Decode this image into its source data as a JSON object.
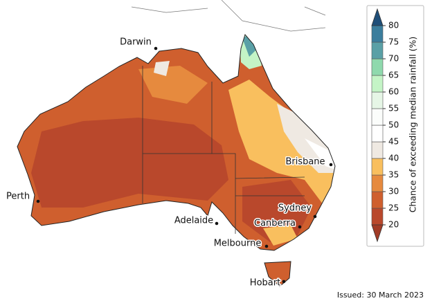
{
  "legend": {
    "title": "Chance of exceeding median rainfall (%)",
    "ticks": [
      20,
      25,
      30,
      35,
      40,
      45,
      50,
      55,
      60,
      65,
      70,
      75,
      80
    ],
    "colors": [
      "#b9482c",
      "#cf5f2e",
      "#e68a3e",
      "#f9bf5e",
      "#efe9e2",
      "#ffffff",
      "#fbfdfb",
      "#e6f6e6",
      "#c4f4c6",
      "#8fd9ad",
      "#5aa0a6",
      "#3b7e9d"
    ],
    "under_color": "#a13b26",
    "over_color": "#1f4f79"
  },
  "cities": [
    {
      "name": "Darwin"
    },
    {
      "name": "Perth"
    },
    {
      "name": "Adelaide"
    },
    {
      "name": "Melbourne"
    },
    {
      "name": "Hobart"
    },
    {
      "name": "Brisbane"
    },
    {
      "name": "Sydney"
    },
    {
      "name": "Canberra"
    }
  ],
  "issued": "Issued: 30 March 2023"
}
